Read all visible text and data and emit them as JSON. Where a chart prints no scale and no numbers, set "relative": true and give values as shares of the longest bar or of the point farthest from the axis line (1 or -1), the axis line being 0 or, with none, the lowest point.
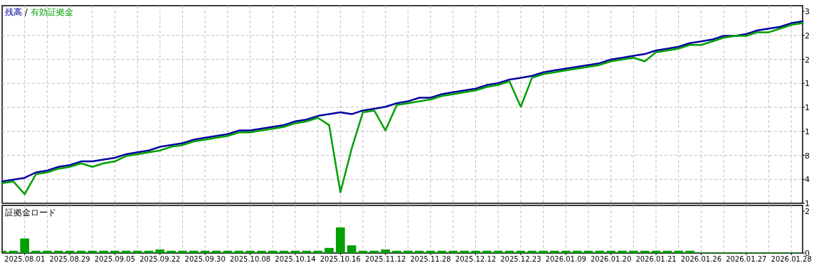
{
  "chart_data": [
    {
      "type": "line",
      "relative": true,
      "grid": true,
      "subtitle": "/",
      "tick_labels": false,
      "categories": [
        null,
        null,
        null,
        null,
        null,
        null,
        null,
        null,
        null,
        null,
        null,
        null,
        null,
        null,
        null,
        null,
        null,
        null,
        null,
        null,
        null,
        null,
        null,
        null,
        null,
        null,
        null,
        null,
        null,
        null,
        null,
        null,
        null,
        null,
        null,
        null,
        null,
        null,
        null,
        null,
        null,
        null,
        null,
        null,
        null,
        null,
        null,
        null,
        null,
        null,
        null,
        null,
        null,
        null,
        null,
        null,
        null,
        null,
        null,
        null,
        null,
        null,
        null,
        null,
        null,
        null,
        null,
        null,
        null,
        null,
        null,
        null
      ],
      "series": [
        {
          "name": "残高",
          "color": "#0000a0",
          "values": [
            0.12,
            0.13,
            0.14,
            0.17,
            0.18,
            0.2,
            0.21,
            0.23,
            0.23,
            0.24,
            0.25,
            0.27,
            0.28,
            0.29,
            0.31,
            0.32,
            0.33,
            0.35,
            0.36,
            0.37,
            0.38,
            0.4,
            0.4,
            0.41,
            0.42,
            0.43,
            0.45,
            0.46,
            0.48,
            0.49,
            0.5,
            0.49,
            0.51,
            0.52,
            0.53,
            0.55,
            0.56,
            0.58,
            0.58,
            0.6,
            0.61,
            0.62,
            0.63,
            0.65,
            0.66,
            0.68,
            0.69,
            0.7,
            0.72,
            0.73,
            0.74,
            0.75,
            0.76,
            0.77,
            0.79,
            0.8,
            0.81,
            0.82,
            0.84,
            0.85,
            0.86,
            0.88,
            0.89,
            0.9,
            0.92,
            0.92,
            0.93,
            0.95,
            0.96,
            0.97,
            0.99,
            1.0
          ]
        },
        {
          "name": "有効証拠金",
          "color": "#00a000",
          "values": [
            0.11,
            0.12,
            0.05,
            0.16,
            0.17,
            0.19,
            0.2,
            0.22,
            0.2,
            0.22,
            0.23,
            0.26,
            0.27,
            0.28,
            0.29,
            0.31,
            0.32,
            0.34,
            0.35,
            0.36,
            0.37,
            0.39,
            0.39,
            0.4,
            0.41,
            0.42,
            0.44,
            0.45,
            0.47,
            0.43,
            0.06,
            0.3,
            0.5,
            0.51,
            0.4,
            0.54,
            0.55,
            0.56,
            0.57,
            0.59,
            0.6,
            0.61,
            0.62,
            0.64,
            0.65,
            0.67,
            0.53,
            0.69,
            0.71,
            0.72,
            0.73,
            0.74,
            0.75,
            0.76,
            0.78,
            0.79,
            0.8,
            0.78,
            0.83,
            0.84,
            0.85,
            0.87,
            0.87,
            0.89,
            0.91,
            0.92,
            0.92,
            0.94,
            0.94,
            0.96,
            0.98,
            0.99
          ]
        }
      ],
      "annotations": [
        "3",
        "2",
        "2",
        "1",
        "1",
        "1",
        "8",
        "4",
        "1"
      ]
    },
    {
      "type": "bar",
      "relative": true,
      "grid": true,
      "tick_labels": "x",
      "title": "証拠金ロード",
      "color": "#00a000",
      "categories": [
        null,
        null,
        "2025.08.01",
        null,
        null,
        null,
        "2025.08.29",
        null,
        null,
        null,
        "2025.09.05",
        null,
        null,
        null,
        "2025.09.22",
        null,
        null,
        null,
        "2025.09.30",
        null,
        null,
        null,
        "2025.10.08",
        null,
        null,
        null,
        "2025.10.14",
        null,
        null,
        null,
        "2025.10.16",
        null,
        null,
        null,
        "2025.11.12",
        null,
        null,
        null,
        "2025.11.28",
        null,
        null,
        null,
        "2025.12.12",
        null,
        null,
        null,
        "2025.12.23",
        null,
        null,
        null,
        "2026.01.09",
        null,
        null,
        null,
        "2026.01.20",
        null,
        null,
        null,
        "2026.01.21",
        null,
        null,
        null,
        "2026.01.26",
        null,
        null,
        null,
        "2026.01.27",
        null,
        null,
        null,
        "2026.01.28",
        null
      ],
      "values": [
        0.09,
        0.09,
        0.57,
        0.09,
        0.09,
        0.09,
        0.09,
        0.09,
        0.09,
        0.09,
        0.09,
        0.09,
        0.09,
        0.09,
        0.14,
        0.09,
        0.09,
        0.09,
        0.09,
        0.09,
        0.09,
        0.09,
        0.09,
        0.09,
        0.09,
        0.09,
        0.09,
        0.09,
        0.09,
        0.2,
        1.0,
        0.3,
        0.09,
        0.09,
        0.14,
        0.09,
        0.09,
        0.09,
        0.09,
        0.09,
        0.09,
        0.09,
        0.09,
        0.09,
        0.09,
        0.09,
        0.09,
        0.09,
        0.09,
        0.09,
        0.09,
        0.09,
        0.09,
        0.09,
        0.09,
        0.09,
        0.09,
        0.09,
        0.09,
        0.09,
        0.09,
        0.09,
        0.03,
        0.03,
        0.03,
        0.03,
        0.03,
        0.03,
        0.03,
        0.03,
        0.03,
        0.03
      ],
      "annotations": [
        "2",
        "0"
      ]
    }
  ]
}
